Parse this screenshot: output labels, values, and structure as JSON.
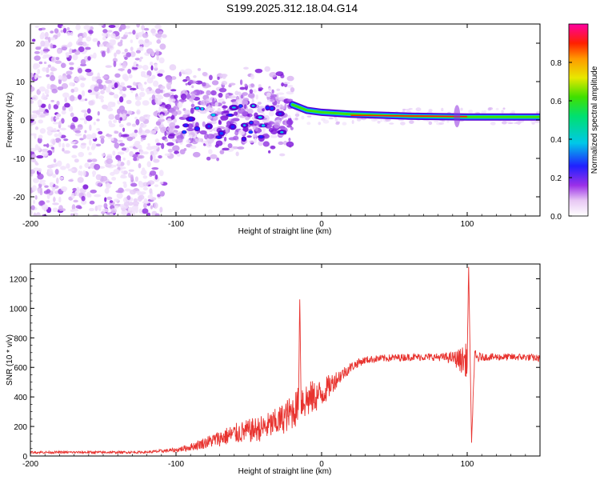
{
  "chart_data": [
    {
      "type": "heatmap",
      "title": "S199.2025.312.18.04.G14",
      "xlabel": "Height of straight line (km)",
      "ylabel": "Frequency (Hz)",
      "xlim": [
        -200,
        150
      ],
      "ylim": [
        -25,
        25
      ],
      "xticks": [
        -200,
        -100,
        0,
        100
      ],
      "xtick_labels": [
        "-200",
        "-100",
        "0",
        "100"
      ],
      "yticks": [
        -20,
        -10,
        0,
        10,
        20
      ],
      "ytick_labels": [
        "-20",
        "-10",
        "0",
        "10",
        "20"
      ],
      "colorbar": {
        "label": "Normalized spectral amplitude",
        "range": [
          0,
          1
        ],
        "ticks": [
          0.0,
          0.2,
          0.4,
          0.6,
          0.8
        ],
        "tick_labels": [
          "0.0",
          "0.2",
          "0.4",
          "0.6",
          "0.8"
        ]
      },
      "description_points": {
        "ridge_frequency_hz": [
          [
            -20,
            4
          ],
          [
            -10,
            2.5
          ],
          [
            0,
            2
          ],
          [
            20,
            1.5
          ],
          [
            60,
            1
          ],
          [
            100,
            0.8
          ],
          [
            150,
            0.8
          ]
        ],
        "peak_amplitude_region_km": [
          20,
          100
        ]
      }
    },
    {
      "type": "line",
      "xlabel": "Height of straight line (km)",
      "ylabel": "SNR (10 * v/v)",
      "xlim": [
        -200,
        150
      ],
      "ylim": [
        0,
        1300
      ],
      "xticks": [
        -200,
        -100,
        0,
        100
      ],
      "xtick_labels": [
        "-200",
        "-100",
        "0",
        "100"
      ],
      "yticks": [
        0,
        200,
        400,
        600,
        800,
        1000,
        1200
      ],
      "ytick_labels": [
        "0",
        "200",
        "400",
        "600",
        "800",
        "1000",
        "1200"
      ],
      "series": [
        {
          "name": "SNR",
          "color": "#e8332f",
          "x": [
            -200,
            -180,
            -160,
            -140,
            -120,
            -100,
            -90,
            -80,
            -70,
            -60,
            -50,
            -40,
            -30,
            -20,
            -16,
            -15,
            -14,
            -10,
            -5,
            0,
            5,
            10,
            15,
            20,
            25,
            30,
            40,
            50,
            60,
            70,
            80,
            90,
            95,
            100,
            101,
            103,
            105,
            110,
            120,
            130,
            140,
            150
          ],
          "values": [
            25,
            25,
            25,
            25,
            26,
            40,
            60,
            90,
            120,
            150,
            170,
            190,
            230,
            300,
            340,
            1060,
            380,
            380,
            400,
            420,
            470,
            520,
            560,
            600,
            630,
            650,
            660,
            665,
            670,
            670,
            670,
            665,
            650,
            650,
            1280,
            90,
            660,
            670,
            670,
            670,
            670,
            660
          ],
          "noise": [
            8,
            8,
            8,
            8,
            8,
            15,
            25,
            40,
            55,
            70,
            80,
            90,
            100,
            120,
            130,
            0,
            140,
            130,
            110,
            100,
            80,
            60,
            45,
            35,
            30,
            25,
            25,
            25,
            25,
            25,
            25,
            40,
            80,
            120,
            0,
            0,
            60,
            25,
            25,
            25,
            25,
            25
          ]
        }
      ]
    }
  ]
}
